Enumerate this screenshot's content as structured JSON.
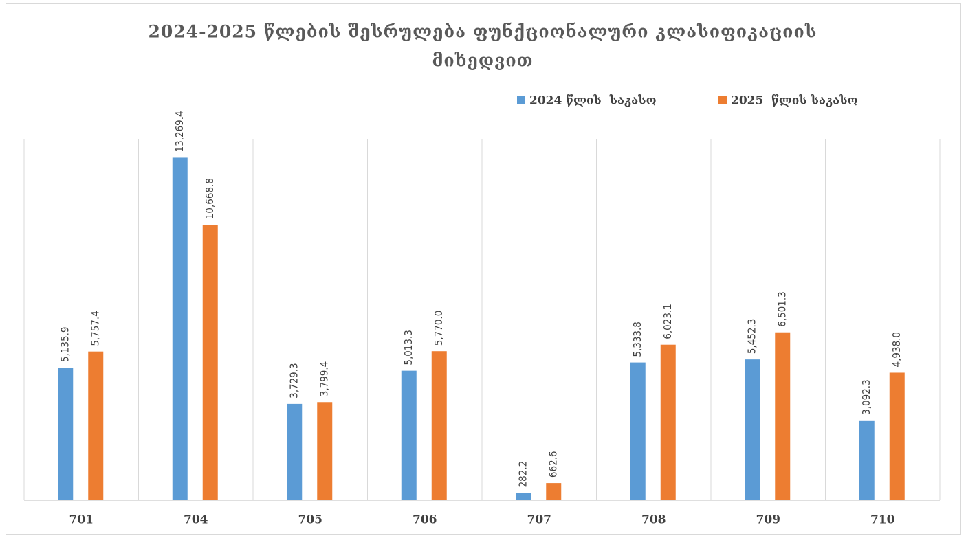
{
  "chart_data": {
    "type": "bar",
    "title": [
      "2024-2025 წლების შესრულება ფუნქციონალური კლასიფიკაციის",
      "მიხედვით"
    ],
    "categories": [
      "701",
      "704",
      "705",
      "706",
      "707",
      "708",
      "709",
      "710"
    ],
    "series": [
      {
        "name": "2024 წლის  საკასო",
        "color": "#5b9bd5",
        "values": [
          5135.9,
          13269.4,
          3729.3,
          5013.3,
          282.2,
          5333.8,
          5452.3,
          3092.3
        ],
        "value_labels": [
          "5,135.9",
          "13,269.4",
          "3,729.3",
          "5,013.3",
          "282.2",
          "5,333.8",
          "5,452.3",
          "3,092.3"
        ]
      },
      {
        "name": "2025  წლის საკასო",
        "color": "#ed7d31",
        "values": [
          5757.4,
          10668.8,
          3799.4,
          5770.0,
          662.6,
          6023.1,
          6501.3,
          4938.0
        ],
        "value_labels": [
          "5,757.4",
          "10,668.8",
          "3,799.4",
          "5,770.0",
          "662.6",
          "6,023.1",
          "6,501.3",
          "4,938.0"
        ]
      }
    ],
    "ylim": [
      0,
      14000
    ],
    "legend": "top-right"
  }
}
